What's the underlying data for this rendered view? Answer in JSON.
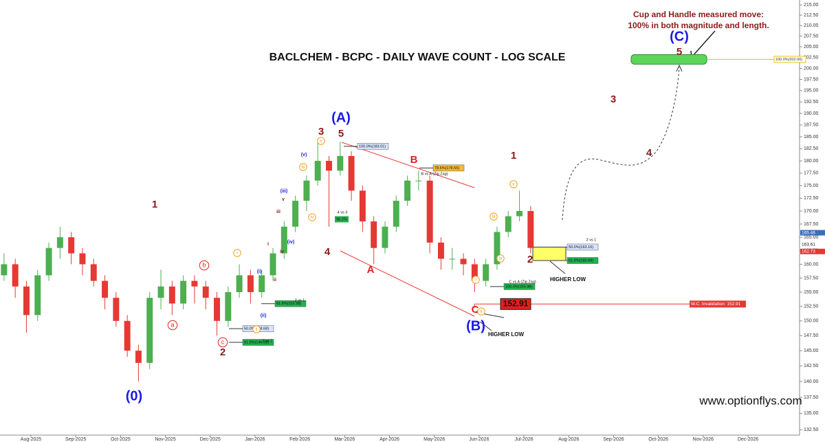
{
  "chart_data": {
    "type": "candlestick",
    "title": "BACLCHEM - BCPC - DAILY WAVE COUNT - LOG SCALE",
    "log_scale": true,
    "up_color": "#4caf50",
    "down_color": "#e53935",
    "xlim": [
      -0.69,
      17.15
    ],
    "xticks": [
      {
        "value": 0,
        "label": "Aug-2025"
      },
      {
        "value": 1,
        "label": "Sep-2025"
      },
      {
        "value": 2,
        "label": "Oct-2025"
      },
      {
        "value": 3,
        "label": "Nov-2025"
      },
      {
        "value": 4,
        "label": "Dec-2025"
      },
      {
        "value": 5,
        "label": "Jan-2026"
      },
      {
        "value": 6,
        "label": "Feb-2026"
      },
      {
        "value": 7,
        "label": "Mar-2026"
      },
      {
        "value": 8,
        "label": "Apr-2026"
      },
      {
        "value": 9,
        "label": "May-2026"
      },
      {
        "value": 10,
        "label": "Jun-2026"
      },
      {
        "value": 11,
        "label": "Jul-2026"
      },
      {
        "value": 12,
        "label": "Aug-2026"
      },
      {
        "value": 13,
        "label": "Sep-2026"
      },
      {
        "value": 14,
        "label": "Oct-2026"
      },
      {
        "value": 15,
        "label": "Nov-2026"
      },
      {
        "value": 16,
        "label": "Dec-2026"
      }
    ],
    "ylim": [
      131.7,
      216.2
    ],
    "yticks": [
      {
        "value": 132.5,
        "label": "132.50"
      },
      {
        "value": 135,
        "label": "135.00"
      },
      {
        "value": 137.5,
        "label": "137.50"
      },
      {
        "value": 140,
        "label": "140.00"
      },
      {
        "value": 142.5,
        "label": "142.50"
      },
      {
        "value": 145,
        "label": "145.00"
      },
      {
        "value": 147.5,
        "label": "147.50"
      },
      {
        "value": 150,
        "label": "150.00"
      },
      {
        "value": 152.5,
        "label": "152.50"
      },
      {
        "value": 155,
        "label": "155.00"
      },
      {
        "value": 157.5,
        "label": "157.50"
      },
      {
        "value": 160,
        "label": "160.00"
      },
      {
        "value": 162.5,
        "label": "162.50"
      },
      {
        "value": 165,
        "label": "165.00"
      },
      {
        "value": 167.5,
        "label": "167.50"
      },
      {
        "value": 170,
        "label": "170.00"
      },
      {
        "value": 172.5,
        "label": "172.50"
      },
      {
        "value": 175,
        "label": "175.00"
      },
      {
        "value": 177.5,
        "label": "177.50"
      },
      {
        "value": 180,
        "label": "180.00"
      },
      {
        "value": 182.5,
        "label": "182.50"
      },
      {
        "value": 185,
        "label": "185.00"
      },
      {
        "value": 187.5,
        "label": "187.50"
      },
      {
        "value": 190,
        "label": "190.00"
      },
      {
        "value": 192.5,
        "label": "192.50"
      },
      {
        "value": 195,
        "label": "195.00"
      },
      {
        "value": 197.5,
        "label": "197.50"
      },
      {
        "value": 200,
        "label": "200.00"
      },
      {
        "value": 202.5,
        "label": "202.50"
      },
      {
        "value": 205,
        "label": "205.00"
      },
      {
        "value": 207.5,
        "label": "207.50"
      },
      {
        "value": 210,
        "label": "210.00"
      },
      {
        "value": 212.5,
        "label": "212.50"
      },
      {
        "value": 215,
        "label": "215.00"
      }
    ],
    "x": [
      -0.6,
      -0.35,
      -0.1,
      0.15,
      0.4,
      0.65,
      0.9,
      1.15,
      1.4,
      1.65,
      1.9,
      2.15,
      2.4,
      2.65,
      2.9,
      3.15,
      3.4,
      3.65,
      3.9,
      4.15,
      4.4,
      4.65,
      4.9,
      5.15,
      5.4,
      5.65,
      5.9,
      6.15,
      6.4,
      6.65,
      6.9,
      7.15,
      7.4,
      7.65,
      7.9,
      8.15,
      8.4,
      8.65,
      8.9,
      9.15,
      9.4,
      9.65,
      9.9,
      10.15,
      10.4,
      10.65,
      10.9,
      11.15
    ],
    "ohlc": [
      [
        158,
        162,
        157,
        160
      ],
      [
        160,
        161,
        154,
        156
      ],
      [
        156,
        157,
        148,
        151
      ],
      [
        151,
        159,
        150,
        158
      ],
      [
        158,
        164,
        157,
        163
      ],
      [
        163,
        167,
        161,
        165
      ],
      [
        165,
        166,
        160,
        162
      ],
      [
        162,
        163,
        158,
        160
      ],
      [
        160,
        161,
        156,
        157
      ],
      [
        157,
        158,
        152,
        154
      ],
      [
        154,
        155,
        149,
        150
      ],
      [
        150,
        151,
        144,
        145
      ],
      [
        145,
        146,
        140,
        143
      ],
      [
        143,
        155,
        142,
        154
      ],
      [
        154,
        159,
        152,
        156
      ],
      [
        156,
        157,
        151,
        153
      ],
      [
        153,
        158,
        152,
        157
      ],
      [
        157,
        158,
        153,
        156
      ],
      [
        156,
        157,
        152,
        154
      ],
      [
        154,
        155,
        147.5,
        150
      ],
      [
        150,
        156,
        149,
        155
      ],
      [
        155,
        160,
        154,
        158
      ],
      [
        158,
        159,
        153,
        155
      ],
      [
        155,
        159,
        154,
        158
      ],
      [
        158,
        163,
        157,
        162
      ],
      [
        162,
        168,
        161,
        167
      ],
      [
        167,
        173,
        166,
        172
      ],
      [
        172,
        177,
        170,
        176
      ],
      [
        176,
        184,
        175,
        180
      ],
      [
        180,
        181,
        167,
        178
      ],
      [
        178,
        184,
        177,
        181
      ],
      [
        181,
        182,
        172,
        174
      ],
      [
        174,
        175,
        166,
        168
      ],
      [
        168,
        169,
        160,
        163
      ],
      [
        163,
        168,
        162,
        167
      ],
      [
        167,
        173,
        166,
        172
      ],
      [
        172,
        177,
        171,
        176
      ],
      [
        176,
        178,
        174,
        176
      ],
      [
        176,
        177,
        162,
        164
      ],
      [
        164,
        165,
        159,
        161
      ],
      [
        161,
        163,
        159,
        161
      ],
      [
        161,
        162,
        158,
        160
      ],
      [
        160,
        161,
        155,
        157
      ],
      [
        157,
        161,
        156,
        160
      ],
      [
        160,
        167,
        159,
        166
      ],
      [
        166,
        170,
        165,
        169
      ],
      [
        169,
        174,
        168,
        170
      ],
      [
        170,
        171,
        162,
        163
      ]
    ],
    "fibs": [
      {
        "label": "50.0%(148.68)",
        "value": 148.68
      },
      {
        "label": "61.8%(146.38)",
        "value": 146.38
      },
      {
        "label": "61.8%(152.98)",
        "value": 152.98
      },
      {
        "label": "100.0%(183.01)",
        "value": 183.01
      },
      {
        "label": "78.6%(178.55)",
        "value": 178.55
      },
      {
        "label": "100.0%(155.98)",
        "value": 155.98
      },
      {
        "label": "50.0%(163.16)",
        "value": 163.16
      },
      {
        "label": "61.8%(160.68)",
        "value": 160.68
      }
    ],
    "target": {
      "label": "100.0%(202.06)",
      "value": 202.06
    },
    "invalidation": {
      "box_label": "152.91",
      "label": "W.C. Invalidation: 152.91",
      "value": 152.91
    },
    "price_tags": [
      {
        "label": "165.46",
        "value": 165.46
      },
      {
        "label": "163.61",
        "value": 163.61
      },
      {
        "label": "162.73",
        "value": 162.73
      }
    ],
    "annotations": [
      "(0)",
      "1",
      "2",
      "3",
      "4",
      "5",
      "(A)",
      "A",
      "B",
      "C",
      "(B)",
      "1",
      "2",
      "3",
      "4",
      "5",
      "(C)",
      "a",
      "b",
      "c",
      "i",
      "ii",
      "iii",
      "iv",
      "v",
      "i",
      "ii",
      "iii",
      "iv",
      "v",
      "(i)",
      "(ii)",
      "(iii)",
      "(iv)",
      "(v)",
      "i",
      "ii",
      "iii",
      "iv",
      "v",
      "HIGHER LOW",
      "HIGHER LOW",
      "www.optionflys.com",
      "Cup and Handle measured move:",
      "100% in both magnitude and length.",
      "2 vs 1",
      "2 vs 1",
      "4 vs 3",
      "B vs A (Zig Zag)",
      "C vs A (Zig Zag)",
      "2 vs 1",
      "56.2%"
    ]
  }
}
